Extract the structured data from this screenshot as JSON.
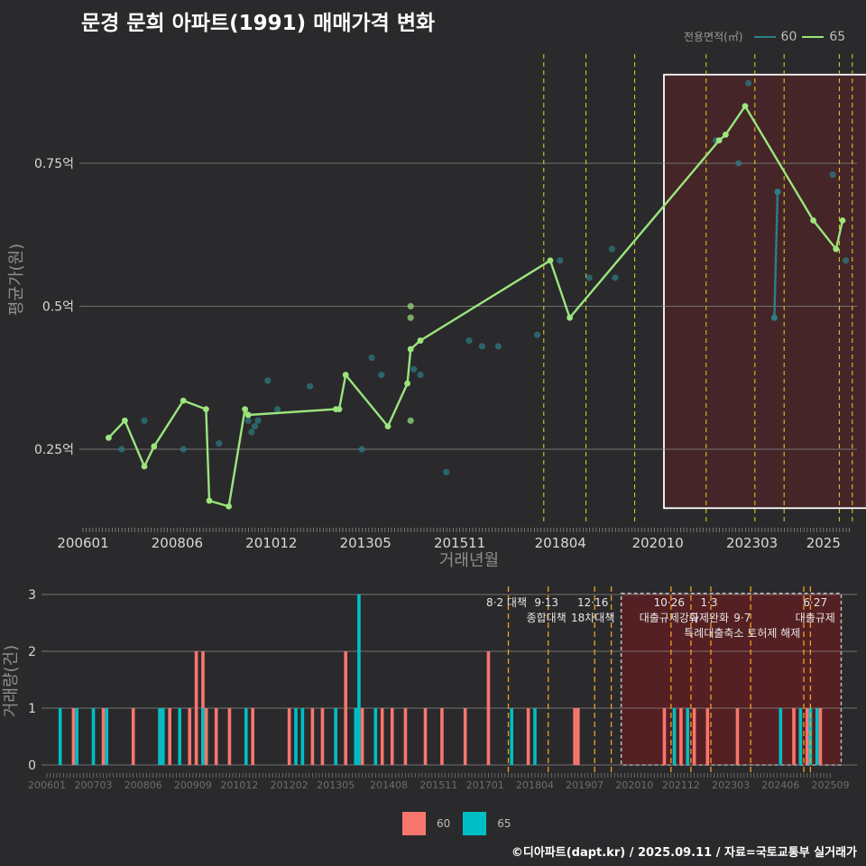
{
  "header": {
    "title": "문경 문희 아파트(1991) 매매가격 변화"
  },
  "legend": {
    "title": "전용면적(㎡)",
    "items": [
      {
        "label": "60",
        "line_color": "#2c7f86",
        "bar_color": "#f8766d"
      },
      {
        "label": "65",
        "line_color": "#9be57d",
        "bar_color": "#00bfc4"
      }
    ]
  },
  "footer": {
    "text": "©디아파트(dapt.kr) / 2025.09.11 / 자료=국토교통부 실거래가"
  },
  "chart_data": [
    {
      "type": "line",
      "ylabel": "평균가(원)",
      "xlabel": "거래년월",
      "ylim": [
        0.11,
        0.95
      ],
      "yticks": [
        {
          "v": 0.25,
          "label": "0.25억"
        },
        {
          "v": 0.5,
          "label": "0.5억"
        },
        {
          "v": 0.75,
          "label": "0.75억"
        }
      ],
      "xticks": [
        {
          "m": 0,
          "label": "200601"
        },
        {
          "m": 29,
          "label": "200806"
        },
        {
          "m": 58,
          "label": "201012"
        },
        {
          "m": 87,
          "label": "201305"
        },
        {
          "m": 116,
          "label": "201511"
        },
        {
          "m": 147,
          "label": "201804"
        },
        {
          "m": 177,
          "label": "202010"
        },
        {
          "m": 206,
          "label": "202303"
        },
        {
          "m": 228,
          "label": "2025"
        }
      ],
      "policy_lines": [
        138,
        151,
        166,
        188,
        203,
        212,
        229,
        233
      ],
      "highlight": [
        175,
        233
      ],
      "series": [
        {
          "name": "60",
          "line": [
            [
              209,
              0.48
            ],
            [
              210,
              0.7
            ]
          ],
          "points": [
            [
              8,
              0.25
            ],
            [
              15,
              0.3
            ],
            [
              27,
              0.25
            ],
            [
              38,
              0.26
            ],
            [
              47,
              0.3
            ],
            [
              48,
              0.28
            ],
            [
              49,
              0.29
            ],
            [
              50,
              0.3
            ],
            [
              53,
              0.37
            ],
            [
              56,
              0.32
            ],
            [
              66,
              0.36
            ],
            [
              82,
              0.25
            ],
            [
              85,
              0.41
            ],
            [
              88,
              0.38
            ],
            [
              98,
              0.39
            ],
            [
              100,
              0.38
            ],
            [
              108,
              0.21
            ],
            [
              115,
              0.44
            ],
            [
              119,
              0.43
            ],
            [
              124,
              0.43
            ],
            [
              136,
              0.45
            ],
            [
              143,
              0.58
            ],
            [
              152,
              0.55
            ],
            [
              159,
              0.6
            ],
            [
              160,
              0.55
            ],
            [
              191,
              0.79
            ],
            [
              198,
              0.75
            ],
            [
              201,
              0.89
            ],
            [
              209,
              0.48
            ],
            [
              210,
              0.7
            ],
            [
              227,
              0.73
            ],
            [
              231,
              0.58
            ]
          ]
        },
        {
          "name": "65",
          "line": [
            [
              4,
              0.27
            ],
            [
              9,
              0.3
            ],
            [
              15,
              0.22
            ],
            [
              18,
              0.255
            ],
            [
              27,
              0.335
            ],
            [
              34,
              0.32
            ],
            [
              35,
              0.16
            ],
            [
              41,
              0.15
            ],
            [
              46,
              0.32
            ],
            [
              47,
              0.31
            ],
            [
              74,
              0.32
            ],
            [
              75,
              0.32
            ],
            [
              77,
              0.38
            ],
            [
              90,
              0.29
            ],
            [
              96,
              0.365
            ],
            [
              97,
              0.425
            ],
            [
              100,
              0.44
            ],
            [
              140,
              0.58
            ],
            [
              146,
              0.48
            ],
            [
              192,
              0.79
            ],
            [
              194,
              0.8
            ],
            [
              200,
              0.85
            ],
            [
              221,
              0.65
            ],
            [
              228,
              0.6
            ],
            [
              230,
              0.65
            ]
          ],
          "points": [
            [
              97,
              0.5
            ],
            [
              97,
              0.48
            ],
            [
              97,
              0.3
            ]
          ]
        }
      ]
    },
    {
      "type": "bar",
      "ylabel": "거래량(건)",
      "ylim": [
        0,
        3
      ],
      "yticks": [
        {
          "v": 0,
          "label": "0"
        },
        {
          "v": 1,
          "label": "1"
        },
        {
          "v": 2,
          "label": "2"
        },
        {
          "v": 3,
          "label": "3"
        }
      ],
      "xticks": [
        {
          "m": 0,
          "label": "200601"
        },
        {
          "m": 14,
          "label": "200703"
        },
        {
          "m": 29,
          "label": "200806"
        },
        {
          "m": 44,
          "label": "200909"
        },
        {
          "m": 58,
          "label": "201012"
        },
        {
          "m": 73,
          "label": "201202"
        },
        {
          "m": 87,
          "label": "201305"
        },
        {
          "m": 103,
          "label": "201408"
        },
        {
          "m": 118,
          "label": "201511"
        },
        {
          "m": 132,
          "label": "201701"
        },
        {
          "m": 147,
          "label": "201804"
        },
        {
          "m": 162,
          "label": "201907"
        },
        {
          "m": 177,
          "label": "202010"
        },
        {
          "m": 191,
          "label": "202112"
        },
        {
          "m": 206,
          "label": "202303"
        },
        {
          "m": 221,
          "label": "202406"
        },
        {
          "m": 236,
          "label": "202509"
        }
      ],
      "policy_lines": [
        139,
        151,
        165,
        170,
        188,
        194,
        200,
        212,
        228,
        230
      ],
      "highlight": [
        173,
        236
      ],
      "annotations": [
        {
          "m": 139,
          "lines": [
            "8·2 대책"
          ],
          "dy": [
            0
          ]
        },
        {
          "m": 151,
          "lines": [
            "9·13",
            "종합대책"
          ],
          "dy": [
            0,
            1
          ]
        },
        {
          "m": 165,
          "lines": [
            "12·16",
            "18차대책"
          ],
          "dy": [
            0,
            1
          ]
        },
        {
          "m": 188,
          "lines": [
            "10·26",
            "대출규제강화"
          ],
          "dy": [
            0,
            1
          ]
        },
        {
          "m": 200,
          "lines": [
            "1·3",
            "규제완화"
          ],
          "dy": [
            0,
            1
          ]
        },
        {
          "m": 210,
          "lines": [
            "9·7",
            "특례대출축소 토허제 해제"
          ],
          "dy": [
            1,
            2
          ]
        },
        {
          "m": 232,
          "lines": [
            "6·27",
            "대출규제"
          ],
          "dy": [
            0,
            1
          ]
        }
      ],
      "series": [
        {
          "name": "60",
          "values": [
            [
              8,
              1
            ],
            [
              17,
              1
            ],
            [
              26,
              1
            ],
            [
              34,
              1
            ],
            [
              37,
              1
            ],
            [
              43,
              1
            ],
            [
              45,
              2
            ],
            [
              47,
              2
            ],
            [
              48,
              1
            ],
            [
              51,
              1
            ],
            [
              55,
              1
            ],
            [
              62,
              1
            ],
            [
              73,
              1
            ],
            [
              80,
              1
            ],
            [
              83,
              1
            ],
            [
              90,
              2
            ],
            [
              95,
              1
            ],
            [
              101,
              1
            ],
            [
              104,
              1
            ],
            [
              108,
              1
            ],
            [
              114,
              1
            ],
            [
              119,
              1
            ],
            [
              126,
              1
            ],
            [
              133,
              2
            ],
            [
              145,
              1
            ],
            [
              159,
              1
            ],
            [
              160,
              1
            ],
            [
              186,
              1
            ],
            [
              191,
              1
            ],
            [
              195,
              1
            ],
            [
              199,
              1
            ],
            [
              208,
              1
            ],
            [
              225,
              1
            ],
            [
              229,
              1
            ],
            [
              233,
              1
            ]
          ]
        },
        {
          "name": "65",
          "values": [
            [
              4,
              1
            ],
            [
              9,
              1
            ],
            [
              14,
              1
            ],
            [
              18,
              1
            ],
            [
              34,
              1
            ],
            [
              35,
              1
            ],
            [
              40,
              1
            ],
            [
              47,
              1
            ],
            [
              60,
              1
            ],
            [
              75,
              1
            ],
            [
              77,
              1
            ],
            [
              87,
              1
            ],
            [
              93,
              1
            ],
            [
              94,
              3
            ],
            [
              99,
              1
            ],
            [
              140,
              1
            ],
            [
              147,
              1
            ],
            [
              189,
              1
            ],
            [
              193,
              1
            ],
            [
              221,
              1
            ],
            [
              227,
              1
            ],
            [
              230,
              1
            ],
            [
              232,
              1
            ]
          ]
        }
      ]
    }
  ]
}
